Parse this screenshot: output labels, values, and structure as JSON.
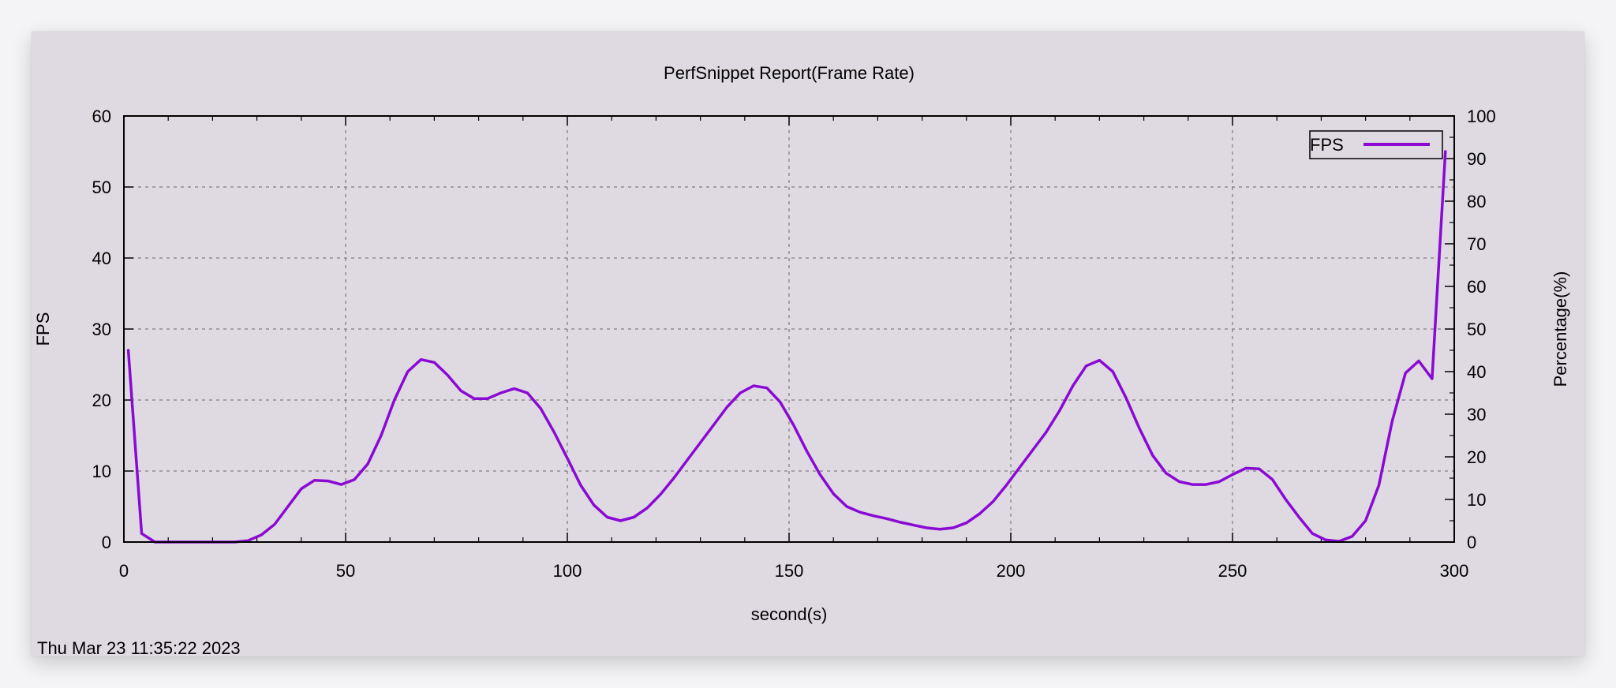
{
  "chart_data": {
    "type": "line",
    "title": "PerfSnippet Report(Frame Rate)",
    "xlabel": "second(s)",
    "ylabel": "FPS",
    "y2label": "Percentage(%)",
    "xlim": [
      0,
      300
    ],
    "ylim": [
      0,
      60
    ],
    "y2lim": [
      0,
      100
    ],
    "xticks": [
      "0",
      "50",
      "100",
      "150",
      "200",
      "250",
      "300"
    ],
    "yticks": [
      "0",
      "10",
      "20",
      "30",
      "40",
      "50",
      "60"
    ],
    "y2ticks": [
      "0",
      "10",
      "20",
      "30",
      "40",
      "50",
      "60",
      "70",
      "80",
      "90",
      "100"
    ],
    "grid": true,
    "legend_position": "top-right",
    "series": [
      {
        "name": "FPS",
        "color": "#8a0ad4",
        "x": [
          1,
          4,
          7,
          10,
          13,
          16,
          19,
          22,
          25,
          28,
          31,
          34,
          37,
          40,
          43,
          46,
          49,
          52,
          55,
          58,
          61,
          64,
          67,
          70,
          73,
          76,
          79,
          82,
          85,
          88,
          91,
          94,
          97,
          100,
          103,
          106,
          109,
          112,
          115,
          118,
          121,
          124,
          127,
          130,
          133,
          136,
          139,
          142,
          145,
          148,
          151,
          154,
          157,
          160,
          163,
          166,
          169,
          172,
          175,
          178,
          181,
          184,
          187,
          190,
          193,
          196,
          199,
          202,
          205,
          208,
          211,
          214,
          217,
          220,
          223,
          226,
          229,
          232,
          235,
          238,
          241,
          244,
          247,
          250,
          253,
          256,
          259,
          262,
          265,
          268,
          271,
          274,
          277,
          280,
          283,
          286,
          289,
          292,
          295,
          298
        ],
        "values": [
          27,
          1.2,
          0,
          0,
          0,
          0,
          0,
          0,
          0,
          0.2,
          1,
          2.5,
          5,
          7.5,
          8.7,
          8.6,
          8.1,
          8.8,
          11,
          15,
          20,
          24,
          25.7,
          25.3,
          23.5,
          21.3,
          20.2,
          20.2,
          21,
          21.6,
          21,
          18.8,
          15.5,
          11.8,
          8,
          5.2,
          3.5,
          3,
          3.5,
          4.8,
          6.7,
          9,
          11.5,
          14,
          16.5,
          19,
          21,
          22,
          21.7,
          19.7,
          16.5,
          12.8,
          9.5,
          6.8,
          5,
          4.2,
          3.7,
          3.3,
          2.8,
          2.4,
          2,
          1.8,
          2,
          2.7,
          4,
          5.7,
          8,
          10.5,
          13,
          15.5,
          18.5,
          22,
          24.8,
          25.6,
          24,
          20.3,
          16,
          12.2,
          9.7,
          8.5,
          8.1,
          8.1,
          8.5,
          9.5,
          10.4,
          10.3,
          8.8,
          6,
          3.5,
          1.2,
          0.3,
          0.1,
          0.8,
          3,
          8,
          17,
          23.8,
          25.5,
          23,
          55
        ]
      }
    ]
  },
  "footer": {
    "timestamp": "Thu Mar 23 11:35:22 2023"
  }
}
